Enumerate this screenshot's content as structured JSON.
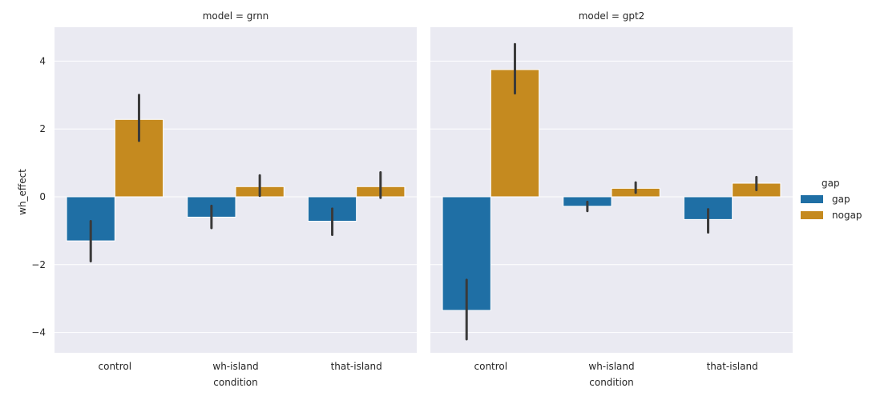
{
  "chart_data": {
    "type": "bar",
    "facet_variable": "model",
    "panels": [
      {
        "title": "model = grnn",
        "categories": [
          "control",
          "wh-island",
          "that-island"
        ],
        "series": [
          {
            "name": "gap",
            "values": [
              -1.3,
              -0.6,
              -0.72
            ],
            "ci_low": [
              -1.9,
              -0.92,
              -1.12
            ],
            "ci_high": [
              -0.72,
              -0.27,
              -0.35
            ]
          },
          {
            "name": "nogap",
            "values": [
              2.28,
              0.3,
              0.3
            ],
            "ci_low": [
              1.65,
              0.03,
              -0.03
            ],
            "ci_high": [
              3.0,
              0.63,
              0.72
            ]
          }
        ]
      },
      {
        "title": "model = gpt2",
        "categories": [
          "control",
          "wh-island",
          "that-island"
        ],
        "series": [
          {
            "name": "gap",
            "values": [
              -3.35,
              -0.28,
              -0.67
            ],
            "ci_low": [
              -4.2,
              -0.42,
              -1.05
            ],
            "ci_high": [
              -2.45,
              -0.15,
              -0.37
            ]
          },
          {
            "name": "nogap",
            "values": [
              3.75,
              0.25,
              0.4
            ],
            "ci_low": [
              3.05,
              0.12,
              0.2
            ],
            "ci_high": [
              4.5,
              0.42,
              0.58
            ]
          }
        ]
      }
    ],
    "xlabel": "condition",
    "ylabel": "wh_effect",
    "ylim": [
      -4.6,
      5.0
    ],
    "yticks": [
      -4,
      -2,
      0,
      2,
      4
    ],
    "ytick_labels": [
      "−4",
      "−2",
      "0",
      "2",
      "4"
    ],
    "legend": {
      "title": "gap",
      "placement": "right",
      "entries": [
        "gap",
        "nogap"
      ]
    },
    "colors": {
      "gap": "#1f6fa5",
      "nogap": "#c58a1f",
      "background": "#eaeaf2",
      "grid": "#ffffff",
      "errorbar": "#3a3a3a"
    },
    "grid": true
  }
}
